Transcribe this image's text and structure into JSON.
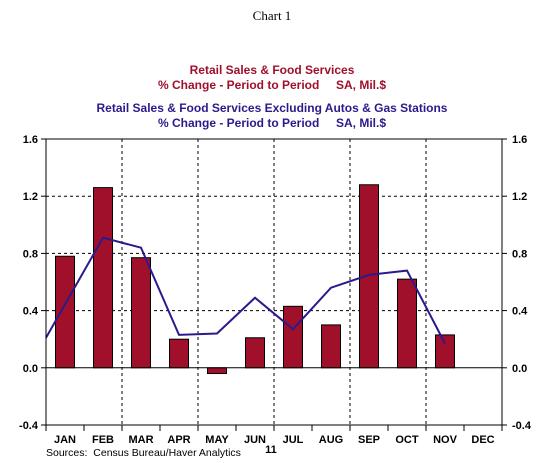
{
  "page_title": "Chart 1",
  "chart_data": {
    "type": "bar",
    "title_lines": [
      {
        "text": "Retail Sales & Food Services",
        "color": "#a0102a"
      },
      {
        "text": "% Change - Period to Period     SA, Mil.$",
        "color": "#a0102a"
      },
      {
        "text": "Retail Sales & Food Services Excluding Autos & Gas Stations",
        "color": "#2c1a8c"
      },
      {
        "text": "% Change - Period to Period     SA, Mil.$",
        "color": "#2c1a8c"
      }
    ],
    "categories": [
      "JAN",
      "FEB",
      "MAR",
      "APR",
      "MAY",
      "JUN",
      "JUL",
      "AUG",
      "SEP",
      "OCT",
      "NOV",
      "DEC"
    ],
    "year_label": "11",
    "ylim": [
      -0.4,
      1.6
    ],
    "yticks": [
      -0.4,
      0.0,
      0.4,
      0.8,
      1.2,
      1.6
    ],
    "grid": true,
    "series": [
      {
        "type": "bar",
        "color": "#a0102a",
        "values": [
          0.78,
          1.26,
          0.77,
          0.2,
          -0.04,
          0.21,
          0.43,
          0.3,
          1.28,
          0.62,
          0.23,
          null
        ]
      },
      {
        "type": "line",
        "color": "#2c1a8c",
        "values": [
          0.21,
          0.91,
          0.84,
          0.23,
          0.24,
          0.49,
          0.27,
          0.56,
          0.65,
          0.68,
          0.17,
          null
        ]
      }
    ],
    "source": "Sources:  Census Bureau/Haver Analytics"
  }
}
